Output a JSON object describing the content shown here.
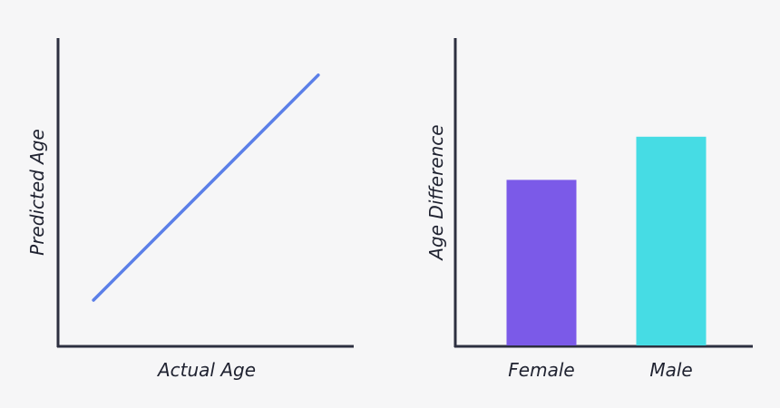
{
  "chart_data": [
    {
      "type": "line",
      "xlabel": "Actual Age",
      "ylabel": "Predicted Age",
      "series": [
        {
          "x": [
            0.12,
            0.88
          ],
          "y": [
            0.15,
            0.88
          ],
          "color": "#5b7fe8"
        }
      ],
      "xlim": [
        0,
        1
      ],
      "ylim": [
        0,
        1
      ],
      "grid": false
    },
    {
      "type": "bar",
      "categories": [
        "Female",
        "Male"
      ],
      "values": [
        0.54,
        0.68
      ],
      "colors": [
        "#7b5ae8",
        "#46dce4"
      ],
      "xlabel": "",
      "ylabel": "Age Difference",
      "ylim": [
        0,
        1
      ],
      "grid": false
    }
  ]
}
